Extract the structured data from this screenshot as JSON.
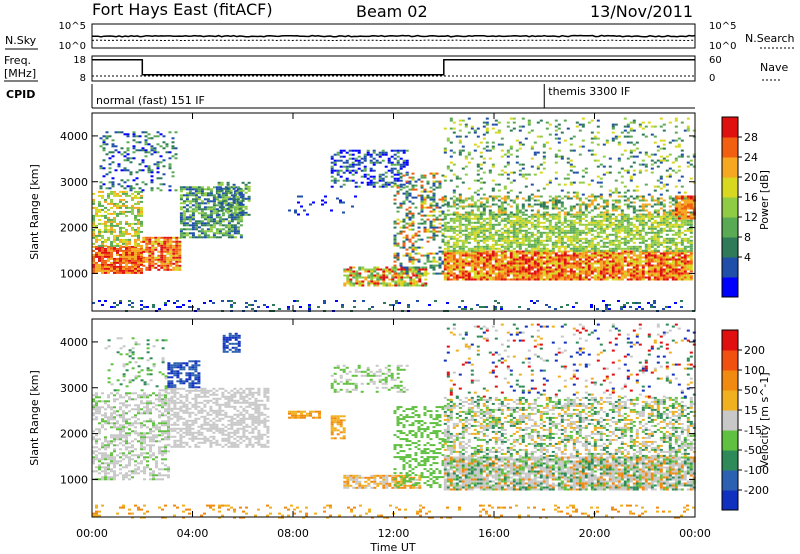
{
  "header": {
    "station": "Fort Hays East (fitACF)",
    "beam": "Beam 02",
    "date": "13/Nov/2011"
  },
  "top_panels": {
    "nsky_label": "N.Sky",
    "nsearch_label": "N.Search",
    "freq_label_line1": "Freq.",
    "freq_label_line2": "[MHz]",
    "nave_label": "Nave",
    "cpid_label": "CPID",
    "left_ticks_noise": [
      "10^5",
      "10^0"
    ],
    "right_ticks_noise": [
      "10^5",
      "10^0"
    ],
    "left_ticks_freq": [
      "18",
      "8"
    ],
    "right_ticks_nave": [
      "60",
      "0"
    ],
    "cpid_modes": [
      {
        "label": "normal (fast) 151 IF",
        "start_hour": 0
      },
      {
        "label": "themis 3300 IF",
        "start_hour": 18
      }
    ]
  },
  "axes": {
    "ylabel": "Slant Range [km]",
    "xlabel": "Time UT",
    "x_ticks": [
      "00:00",
      "04:00",
      "08:00",
      "12:00",
      "16:00",
      "20:00",
      "00:00"
    ],
    "y_ticks": [
      "1000",
      "2000",
      "3000",
      "4000"
    ]
  },
  "colorbars": {
    "power": {
      "label": "Power [dB]",
      "ticks": [
        "28",
        "24",
        "20",
        "16",
        "12",
        "8",
        "4"
      ],
      "colors": [
        "#0000ff",
        "#1f4fa8",
        "#2f7a58",
        "#5aaa55",
        "#8fcc44",
        "#d8d820",
        "#f5a820",
        "#f06010",
        "#e01010"
      ]
    },
    "velocity": {
      "label": "Velocity [m s^-1]",
      "ticks": [
        "200",
        "100",
        "50",
        "15",
        "-15",
        "-50",
        "-100",
        "-200"
      ],
      "colors": [
        "#1030c0",
        "#2c60b0",
        "#2f8a5a",
        "#60c040",
        "#c8c8c8",
        "#f0b020",
        "#f08a10",
        "#f05010",
        "#e01010"
      ]
    }
  },
  "chart_data": [
    {
      "type": "line",
      "title": "Fort Hays East (fitACF)",
      "name": "noise",
      "x_hours": [
        0,
        2,
        4,
        6,
        8,
        10,
        12,
        14,
        16,
        18,
        20,
        22,
        24
      ],
      "nsky": [
        2.4,
        2.45,
        2.5,
        2.45,
        2.5,
        2.45,
        2.5,
        2.45,
        2.5,
        2.45,
        2.5,
        2.45,
        2.5
      ],
      "nsearch": [
        1.6,
        1.6,
        1.6,
        1.6,
        1.6,
        1.6,
        1.6,
        1.6,
        1.6,
        1.6,
        1.6,
        1.6,
        1.6
      ],
      "ylim": [
        0,
        5
      ]
    },
    {
      "type": "line",
      "name": "freq_nave",
      "freq_steps": [
        {
          "start": 0,
          "end": 2,
          "value": 16.5
        },
        {
          "start": 2,
          "end": 14,
          "value": 10.5
        },
        {
          "start": 14,
          "end": 24,
          "value": 16.5
        }
      ],
      "freq_ylim": [
        8,
        18
      ],
      "nave_value": 12,
      "nave_ylim": [
        0,
        60
      ]
    },
    {
      "type": "heatmap",
      "name": "power",
      "xlabel": "Time UT",
      "ylabel": "Slant Range [km]",
      "xlim": [
        0,
        24
      ],
      "ylim": [
        180,
        4500
      ],
      "colorbar_label": "Power [dB]",
      "regions": [
        {
          "t0": 0.0,
          "t1": 2.0,
          "r0": 1000,
          "r1": 1600,
          "density": 0.9,
          "ci": [
            6,
            7,
            8
          ]
        },
        {
          "t0": 0.0,
          "t1": 2.0,
          "r0": 1600,
          "r1": 2800,
          "density": 0.55,
          "ci": [
            3,
            4,
            5,
            6
          ]
        },
        {
          "t0": 0.3,
          "t1": 3.3,
          "r0": 2800,
          "r1": 4100,
          "density": 0.25,
          "ci": [
            0,
            1,
            2,
            3
          ]
        },
        {
          "t0": 2.0,
          "t1": 3.5,
          "r0": 1100,
          "r1": 1800,
          "density": 0.85,
          "ci": [
            5,
            6,
            7,
            8
          ]
        },
        {
          "t0": 3.5,
          "t1": 6.0,
          "r0": 1800,
          "r1": 2900,
          "density": 0.7,
          "ci": [
            1,
            2,
            3,
            4
          ]
        },
        {
          "t0": 5.0,
          "t1": 6.2,
          "r0": 2300,
          "r1": 3000,
          "density": 0.5,
          "ci": [
            1,
            2,
            4
          ]
        },
        {
          "t0": 7.8,
          "t1": 10.5,
          "r0": 2300,
          "r1": 2700,
          "density": 0.08,
          "ci": [
            0,
            1
          ]
        },
        {
          "t0": 9.5,
          "t1": 12.5,
          "r0": 2900,
          "r1": 3700,
          "density": 0.45,
          "ci": [
            0,
            1,
            3
          ]
        },
        {
          "t0": 10.0,
          "t1": 13.3,
          "r0": 750,
          "r1": 1150,
          "density": 0.7,
          "ci": [
            3,
            4,
            5,
            6,
            8
          ]
        },
        {
          "t0": 12.0,
          "t1": 14.0,
          "r0": 1000,
          "r1": 3200,
          "density": 0.35,
          "ci": [
            1,
            2,
            3,
            5,
            7
          ]
        },
        {
          "t0": 14.0,
          "t1": 23.8,
          "r0": 850,
          "r1": 1500,
          "density": 0.9,
          "ci": [
            5,
            6,
            7,
            8
          ]
        },
        {
          "t0": 14.0,
          "t1": 23.8,
          "r0": 1500,
          "r1": 2300,
          "density": 0.7,
          "ci": [
            3,
            4,
            5
          ]
        },
        {
          "t0": 14.0,
          "t1": 24.0,
          "r0": 2300,
          "r1": 2700,
          "density": 0.5,
          "ci": [
            2,
            3,
            4,
            6
          ]
        },
        {
          "t0": 14.0,
          "t1": 24.0,
          "r0": 2700,
          "r1": 4400,
          "density": 0.15,
          "ci": [
            1,
            2,
            3,
            4,
            5
          ]
        },
        {
          "t0": 23.2,
          "t1": 24.0,
          "r0": 2200,
          "r1": 2700,
          "density": 0.8,
          "ci": [
            6,
            7,
            8
          ]
        },
        {
          "t0": 0.0,
          "t1": 24.0,
          "r0": 180,
          "r1": 420,
          "density": 0.15,
          "ci": [
            0,
            1,
            2
          ]
        }
      ]
    },
    {
      "type": "heatmap",
      "name": "velocity",
      "xlabel": "Time UT",
      "ylabel": "Slant Range [km]",
      "xlim": [
        0,
        24
      ],
      "ylim": [
        180,
        4500
      ],
      "colorbar_label": "Velocity [m s^-1]",
      "regions": [
        {
          "t0": 0.0,
          "t1": 3.0,
          "r0": 1000,
          "r1": 2900,
          "density": 0.5,
          "ci": [
            4,
            4,
            4,
            3
          ]
        },
        {
          "t0": 0.5,
          "t1": 3.0,
          "r0": 2900,
          "r1": 4100,
          "density": 0.15,
          "ci": [
            2,
            3,
            4
          ]
        },
        {
          "t0": 3.0,
          "t1": 4.3,
          "r0": 3000,
          "r1": 3600,
          "density": 0.6,
          "ci": [
            0,
            1
          ]
        },
        {
          "t0": 5.2,
          "t1": 5.8,
          "r0": 3800,
          "r1": 4200,
          "density": 0.7,
          "ci": [
            0,
            1
          ]
        },
        {
          "t0": 3.0,
          "t1": 7.0,
          "r0": 1700,
          "r1": 3000,
          "density": 0.55,
          "ci": [
            4
          ]
        },
        {
          "t0": 7.8,
          "t1": 9.0,
          "r0": 2350,
          "r1": 2500,
          "density": 0.7,
          "ci": [
            5,
            6
          ]
        },
        {
          "t0": 9.5,
          "t1": 10.0,
          "r0": 1900,
          "r1": 2400,
          "density": 0.6,
          "ci": [
            5,
            6
          ]
        },
        {
          "t0": 9.5,
          "t1": 12.5,
          "r0": 2900,
          "r1": 3500,
          "density": 0.35,
          "ci": [
            4,
            3
          ]
        },
        {
          "t0": 10.0,
          "t1": 13.0,
          "r0": 800,
          "r1": 1100,
          "density": 0.7,
          "ci": [
            5,
            6,
            4
          ]
        },
        {
          "t0": 12.0,
          "t1": 14.0,
          "r0": 850,
          "r1": 2600,
          "density": 0.35,
          "ci": [
            3
          ]
        },
        {
          "t0": 14.0,
          "t1": 24.0,
          "r0": 800,
          "r1": 1500,
          "density": 0.85,
          "ci": [
            4,
            4,
            4,
            2,
            3,
            6
          ]
        },
        {
          "t0": 14.0,
          "t1": 24.0,
          "r0": 1500,
          "r1": 2800,
          "density": 0.5,
          "ci": [
            4,
            4,
            3,
            2,
            5
          ]
        },
        {
          "t0": 14.0,
          "t1": 24.0,
          "r0": 2800,
          "r1": 4400,
          "density": 0.12,
          "ci": [
            0,
            2,
            4,
            5,
            8
          ]
        },
        {
          "t0": 0.0,
          "t1": 24.0,
          "r0": 180,
          "r1": 450,
          "density": 0.15,
          "ci": [
            5,
            6
          ]
        }
      ]
    }
  ]
}
